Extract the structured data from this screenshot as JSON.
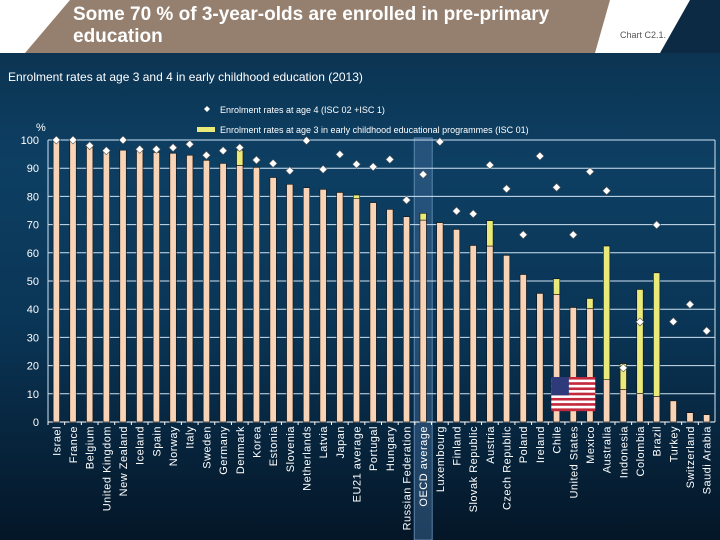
{
  "header": {
    "title": "Some 70 % of 3-year-olds are enrolled in pre-primary education",
    "chart_number": "Chart C2.1."
  },
  "colors": {
    "age3_base": "#f8d3b6",
    "age3_isc01": "#eaea7a",
    "age4_marker": "#ffffff",
    "header_band": "#958070",
    "highlight": "#3a6590"
  },
  "chart_data": {
    "type": "bar",
    "title": "Enrolment rates at age 3 and 4 in early childhood education (2013)",
    "ylabel": "%",
    "ylim": [
      0,
      100
    ],
    "yticks": [
      0,
      10,
      20,
      30,
      40,
      50,
      60,
      70,
      80,
      90,
      100
    ],
    "grid": true,
    "legend_position": "top",
    "highlighted_category": "OECD average",
    "flag_marker_category": "United States",
    "categories": [
      "Israel",
      "France",
      "Belgium",
      "United Kingdom",
      "New Zealand",
      "Iceland",
      "Spain",
      "Norway",
      "Italy",
      "Sweden",
      "Germany",
      "Denmark",
      "Korea",
      "Estonia",
      "Slovenia",
      "Netherlands",
      "Latvia",
      "Japan",
      "EU21 average",
      "Portugal",
      "Hungary",
      "Russian Federation",
      "OECD average",
      "Luxembourg",
      "Finland",
      "Slovak Republic",
      "Austria",
      "Czech Republic",
      "Poland",
      "Ireland",
      "Chile",
      "United States",
      "Mexico",
      "Australia",
      "Indonesia",
      "Colombia",
      "Brazil",
      "Turkey",
      "Switzerland",
      "Saudi Arabia"
    ],
    "series": [
      {
        "type": "bar",
        "values": [
          100,
          100,
          97.6,
          96.4,
          96.4,
          96.4,
          95.6,
          95.3,
          94.6,
          92.8,
          91.7,
          91.0,
          90.3,
          86.7,
          84.3,
          83.1,
          82.5,
          81.4,
          79.2,
          77.8,
          75.4,
          72.8,
          71.6,
          70.7,
          68.3,
          62.6,
          62.4,
          59.1,
          52.3,
          45.6,
          45.2,
          40.6,
          40.2,
          15.0,
          11.5,
          10.1,
          9.1,
          7.5,
          3.3,
          2.6
        ]
      },
      {
        "name": "Enrolment rates at age 3 in early childhood educational programmes (ISC 01)",
        "type": "bar-stacked",
        "values": [
          0,
          0,
          0,
          0,
          0,
          0,
          0,
          0,
          0,
          0,
          0,
          5.4,
          0,
          0,
          0,
          0,
          0,
          0,
          1.3,
          0,
          0,
          0,
          2.4,
          0,
          0,
          0,
          9.0,
          0,
          0,
          0,
          5.6,
          0,
          3.6,
          47.4,
          9.2,
          36.9,
          43.8,
          0,
          0,
          0
        ]
      },
      {
        "name": "Enrolment rates at age 4 (ISC 02 +ISC 1)",
        "type": "marker",
        "values": [
          100,
          100,
          98.0,
          96.2,
          100,
          96.7,
          96.7,
          97.3,
          98.5,
          94.6,
          96.2,
          97.3,
          92.9,
          91.7,
          89.1,
          99.8,
          89.6,
          94.9,
          91.4,
          90.5,
          93.1,
          78.7,
          87.8,
          99.4,
          74.8,
          73.8,
          91.1,
          82.7,
          66.4,
          94.3,
          83.2,
          66.4,
          88.8,
          82.0,
          19.2,
          35.5,
          69.9,
          35.6,
          41.7,
          32.3
        ]
      }
    ]
  }
}
